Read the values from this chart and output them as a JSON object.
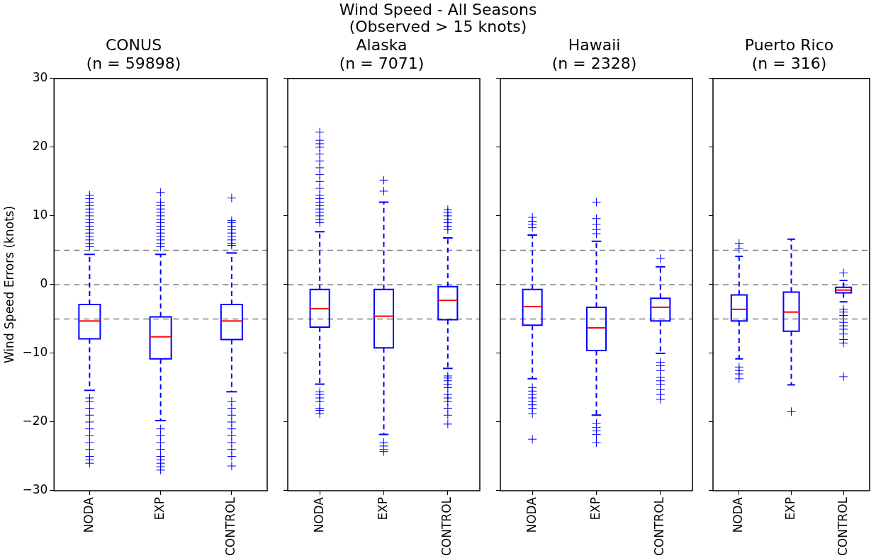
{
  "chart_data": [
    {
      "type": "box",
      "title": "CONUS\n(n = 59898)",
      "ylabel": "Wind Speed Errors (knots)",
      "annotations": [
        "Wind Speed - All Seasons\n(Observed > 15 knots)"
      ],
      "categories": [
        "NODA",
        "EXP",
        "CONTROL"
      ],
      "color": "#0000ff",
      "ylim": [
        -30,
        30
      ],
      "yticks": [
        -30,
        -20,
        -10,
        0,
        10,
        20,
        30
      ],
      "marker": "cross",
      "ref_lines": [
        {
          "axis": "y",
          "value": 5,
          "color": "#808080",
          "line_style": "dashed"
        },
        {
          "axis": "y",
          "value": 0,
          "color": "#808080",
          "line_style": "dashed"
        },
        {
          "axis": "y",
          "value": -5,
          "color": "#808080",
          "line_style": "dashed"
        }
      ],
      "boxes": [
        {
          "low": -15.4,
          "q1": -7.9,
          "median": -5.3,
          "q3": -2.9,
          "high": 4.4,
          "outliers": [
            5.5,
            6,
            6.5,
            7,
            7.5,
            8,
            8.5,
            9,
            9.5,
            10,
            10.5,
            11,
            11.5,
            12,
            12.5,
            13,
            -16.5,
            -17,
            -18,
            -19,
            -20,
            -21,
            -22,
            -23,
            -24,
            -25,
            -25.5,
            -26
          ]
        },
        {
          "low": -19.8,
          "q1": -10.8,
          "median": -7.6,
          "q3": -4.7,
          "high": 4.4,
          "outliers": [
            5.5,
            6,
            6.5,
            7,
            7.5,
            8,
            8.5,
            9,
            9.5,
            10,
            10.5,
            11,
            11.5,
            12,
            13.4,
            -21,
            -22,
            -23,
            -24,
            -25,
            -25.5,
            -26,
            -26.5,
            -27
          ]
        },
        {
          "low": -15.6,
          "q1": -8,
          "median": -5.3,
          "q3": -2.9,
          "high": 4.6,
          "outliers": [
            5.7,
            6,
            6.5,
            7,
            7.5,
            8,
            8.5,
            9,
            9.3,
            12.6,
            -17,
            -18,
            -19,
            -20,
            -21,
            -22,
            -23,
            -24,
            -25,
            -26.4
          ]
        }
      ]
    },
    {
      "type": "box",
      "title": "Alaska\n(n = 7071)",
      "categories": [
        "NODA",
        "EXP",
        "CONTROL"
      ],
      "color": "#0000ff",
      "ylim": [
        -30,
        30
      ],
      "yticks": [
        -30,
        -20,
        -10,
        0,
        10,
        20,
        30
      ],
      "tick_labels": "x",
      "marker": "cross",
      "ref_lines": [
        {
          "axis": "y",
          "value": 5,
          "color": "#808080",
          "line_style": "dashed"
        },
        {
          "axis": "y",
          "value": 0,
          "color": "#808080",
          "line_style": "dashed"
        },
        {
          "axis": "y",
          "value": -5,
          "color": "#808080",
          "line_style": "dashed"
        }
      ],
      "boxes": [
        {
          "low": -14.5,
          "q1": -6.2,
          "median": -3.5,
          "q3": -0.7,
          "high": 7.7,
          "outliers": [
            9,
            9.5,
            10,
            10.5,
            11,
            11.5,
            12,
            12.5,
            13,
            14,
            15,
            16,
            17,
            18,
            19,
            20,
            20.5,
            21,
            22.2,
            -15.6,
            -16,
            -16.5,
            -17,
            -18,
            -18.3,
            -18.8
          ]
        },
        {
          "low": -21.8,
          "q1": -9.2,
          "median": -4.6,
          "q3": -0.7,
          "high": 12,
          "outliers": [
            13.6,
            15.2,
            -23,
            -23.5,
            -24,
            -24.3
          ]
        },
        {
          "low": -12.2,
          "q1": -5.1,
          "median": -2.3,
          "q3": -0.3,
          "high": 6.8,
          "outliers": [
            8,
            8.5,
            9,
            9.5,
            10,
            10.5,
            10.9,
            -13.3,
            -13.6,
            -14,
            -14.5,
            -15,
            -16,
            -16.5,
            -17,
            -18,
            -19,
            -20.3
          ]
        }
      ]
    },
    {
      "type": "box",
      "title": "Hawaii\n(n = 2328)",
      "categories": [
        "NODA",
        "EXP",
        "CONTROL"
      ],
      "color": "#0000ff",
      "ylim": [
        -30,
        30
      ],
      "yticks": [
        -30,
        -20,
        -10,
        0,
        10,
        20,
        30
      ],
      "tick_labels": "x",
      "marker": "cross",
      "ref_lines": [
        {
          "axis": "y",
          "value": 5,
          "color": "#808080",
          "line_style": "dashed"
        },
        {
          "axis": "y",
          "value": 0,
          "color": "#808080",
          "line_style": "dashed"
        },
        {
          "axis": "y",
          "value": -5,
          "color": "#808080",
          "line_style": "dashed"
        }
      ],
      "boxes": [
        {
          "low": -13.7,
          "q1": -5.9,
          "median": -3.2,
          "q3": -0.7,
          "high": 7.2,
          "outliers": [
            8.3,
            8.8,
            9.2,
            9.8,
            -15,
            -15.5,
            -16,
            -16.5,
            -17,
            -17.5,
            -18,
            -18.8,
            -22.5
          ]
        },
        {
          "low": -19,
          "q1": -9.6,
          "median": -6.3,
          "q3": -3.3,
          "high": 6.3,
          "outliers": [
            7.4,
            8,
            8.8,
            9.6,
            12,
            -20.2,
            -20.8,
            -21.3,
            -21.8,
            -23
          ]
        },
        {
          "low": -10,
          "q1": -5.3,
          "median": -3.3,
          "q3": -2,
          "high": 2.6,
          "outliers": [
            3.8,
            -11.3,
            -11.8,
            -12.5,
            -13.5,
            -14,
            -14.5,
            -15.3,
            -16,
            -16.7
          ]
        }
      ]
    },
    {
      "type": "box",
      "title": "Puerto Rico\n(n = 316)",
      "categories": [
        "NODA",
        "EXP",
        "CONTROL"
      ],
      "color": "#0000ff",
      "ylim": [
        -30,
        30
      ],
      "yticks": [
        -30,
        -20,
        -10,
        0,
        10,
        20,
        30
      ],
      "tick_labels": "x",
      "marker": "cross",
      "ref_lines": [
        {
          "axis": "y",
          "value": 5,
          "color": "#808080",
          "line_style": "dashed"
        },
        {
          "axis": "y",
          "value": 0,
          "color": "#808080",
          "line_style": "dashed"
        },
        {
          "axis": "y",
          "value": -5,
          "color": "#808080",
          "line_style": "dashed"
        }
      ],
      "boxes": [
        {
          "low": -10.8,
          "q1": -5.3,
          "median": -3.6,
          "q3": -1.5,
          "high": 4.1,
          "outliers": [
            5.2,
            6,
            -12,
            -12.5,
            -13,
            -13.7
          ]
        },
        {
          "low": -14.6,
          "q1": -6.8,
          "median": -4,
          "q3": -1.1,
          "high": 6.6,
          "outliers": [
            -18.5
          ]
        },
        {
          "low": -2.5,
          "q1": -1.2,
          "median": -0.8,
          "q3": -0.4,
          "high": 0.6,
          "outliers": [
            1.7,
            -3.6,
            -4,
            -4.5,
            -5,
            -5.5,
            -6,
            -6.5,
            -7.2,
            -8,
            -8.5,
            -13.4
          ]
        }
      ]
    }
  ]
}
